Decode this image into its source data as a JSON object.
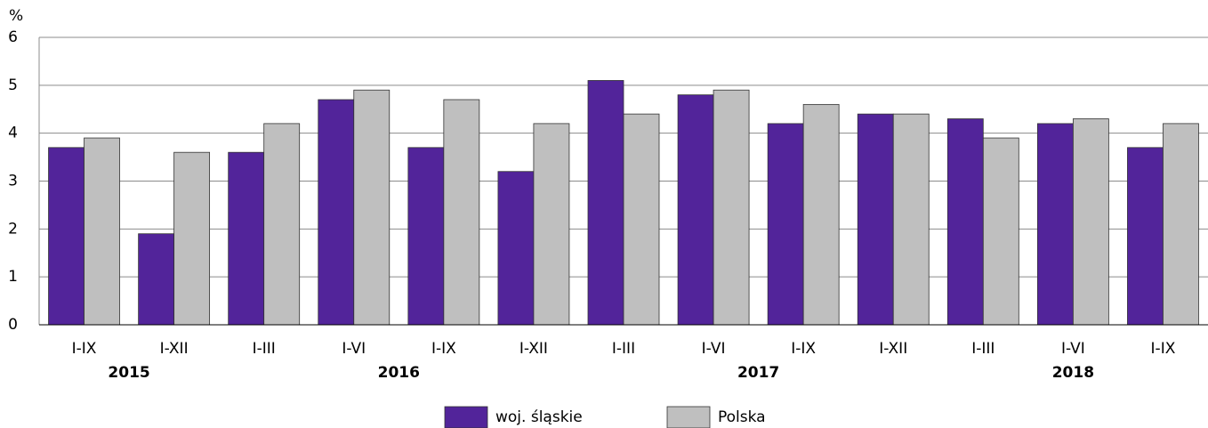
{
  "chart_data": {
    "type": "bar",
    "ylabel": "%",
    "groups": [
      {
        "label": "2015",
        "categories": [
          "I-IX",
          "I-XII"
        ]
      },
      {
        "label": "2016",
        "categories": [
          "I-III",
          "I-VI",
          "I-IX",
          "I-XII"
        ]
      },
      {
        "label": "2017",
        "categories": [
          "I-III",
          "I-VI",
          "I-IX",
          "I-XII"
        ]
      },
      {
        "label": "2018",
        "categories": [
          "I-III",
          "I-VI",
          "I-IX"
        ]
      }
    ],
    "series": [
      {
        "name": "woj. śląskie",
        "color": "#52249a",
        "values": [
          3.7,
          1.9,
          3.6,
          4.7,
          3.7,
          3.2,
          5.1,
          4.8,
          4.2,
          4.4,
          4.3,
          4.2,
          3.7
        ]
      },
      {
        "name": "Polska",
        "color": "#bfbfbf",
        "values": [
          3.9,
          3.6,
          4.2,
          4.9,
          4.7,
          4.2,
          4.4,
          4.9,
          4.6,
          4.4,
          3.9,
          4.3,
          4.2
        ]
      }
    ],
    "ylim": [
      0,
      6
    ],
    "yticks": [
      0,
      1,
      2,
      3,
      4,
      5,
      6
    ],
    "grid": true,
    "legend": "bottom"
  }
}
